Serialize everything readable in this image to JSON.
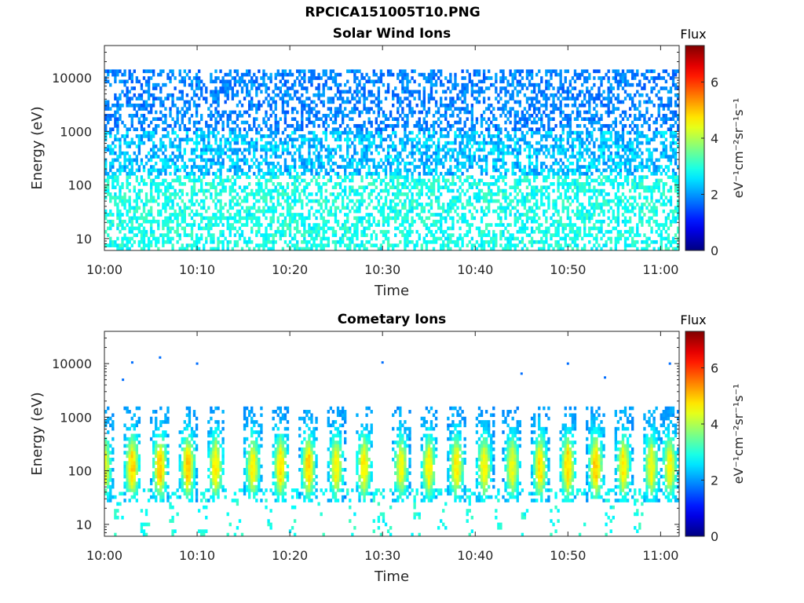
{
  "figure": {
    "title": "RPCICA151005T10.PNG"
  },
  "chart_data": [
    {
      "type": "heatmap",
      "title": "Solar Wind Ions",
      "xlabel": "Time",
      "ylabel": "Energy (eV)",
      "x_ticks": [
        "10:00",
        "10:10",
        "10:20",
        "10:30",
        "10:40",
        "10:50",
        "11:00"
      ],
      "x_range": [
        "10:00",
        "11:02"
      ],
      "y_scale": "log",
      "y_ticks": [
        10,
        100,
        1000,
        10000
      ],
      "y_tick_labels": [
        "10",
        "100",
        "1000",
        "10000"
      ],
      "y_range": [
        6,
        40000
      ],
      "colorbar": {
        "title": "Flux",
        "label": "eV⁻¹cm⁻²sr⁻¹s⁻¹",
        "ticks": [
          0,
          2,
          4,
          6
        ],
        "range": [
          0,
          7.3
        ],
        "colormap": "jet"
      },
      "description_of_data": [
        {
          "energy_range": [
            1000,
            15000
          ],
          "flux_range": [
            1.5,
            2.2
          ]
        },
        {
          "energy_range": [
            150,
            1000
          ],
          "flux_range": [
            1.8,
            2.8
          ]
        },
        {
          "energy_range": [
            6,
            150
          ],
          "flux_range": [
            2.5,
            3.3
          ]
        }
      ]
    },
    {
      "type": "heatmap",
      "title": "Cometary Ions",
      "xlabel": "Time",
      "ylabel": "Energy (eV)",
      "x_ticks": [
        "10:00",
        "10:10",
        "10:20",
        "10:30",
        "10:40",
        "10:50",
        "11:00"
      ],
      "x_range": [
        "10:00",
        "11:02"
      ],
      "y_scale": "log",
      "y_ticks": [
        10,
        100,
        1000,
        10000
      ],
      "y_tick_labels": [
        "10",
        "100",
        "1000",
        "10000"
      ],
      "y_range": [
        6,
        40000
      ],
      "colorbar": {
        "title": "Flux",
        "label": "eV⁻¹cm⁻²sr⁻¹s⁻¹",
        "ticks": [
          0,
          2,
          4,
          6
        ],
        "range": [
          0,
          7.3
        ],
        "colormap": "jet"
      },
      "bursts": [
        {
          "time": "10:00",
          "peak_flux": 4.4
        },
        {
          "time": "10:03",
          "peak_flux": 4.8
        },
        {
          "time": "10:06",
          "peak_flux": 4.9
        },
        {
          "time": "10:09",
          "peak_flux": 4.9
        },
        {
          "time": "10:12",
          "peak_flux": 4.6
        },
        {
          "time": "10:16",
          "peak_flux": 4.5
        },
        {
          "time": "10:19",
          "peak_flux": 4.7
        },
        {
          "time": "10:22",
          "peak_flux": 4.8
        },
        {
          "time": "10:25",
          "peak_flux": 4.5
        },
        {
          "time": "10:28",
          "peak_flux": 4.6
        },
        {
          "time": "10:32",
          "peak_flux": 4.4
        },
        {
          "time": "10:35",
          "peak_flux": 4.5
        },
        {
          "time": "10:38",
          "peak_flux": 4.6
        },
        {
          "time": "10:41",
          "peak_flux": 4.5
        },
        {
          "time": "10:44",
          "peak_flux": 4.4
        },
        {
          "time": "10:47",
          "peak_flux": 4.7
        },
        {
          "time": "10:50",
          "peak_flux": 4.8
        },
        {
          "time": "10:53",
          "peak_flux": 4.9
        },
        {
          "time": "10:56",
          "peak_flux": 4.6
        },
        {
          "time": "10:59",
          "peak_flux": 4.4
        },
        {
          "time": "11:01",
          "peak_flux": 4.5
        }
      ],
      "sparse_high_energy_points": [
        {
          "time": "10:03",
          "energy": 10500
        },
        {
          "time": "10:06",
          "energy": 13000
        },
        {
          "time": "10:10",
          "energy": 10000
        },
        {
          "time": "10:30",
          "energy": 10500
        },
        {
          "time": "10:50",
          "energy": 10000
        },
        {
          "time": "11:01",
          "energy": 10000
        },
        {
          "time": "10:02",
          "energy": 5000
        },
        {
          "time": "10:45",
          "energy": 6500
        },
        {
          "time": "10:54",
          "energy": 5500
        }
      ]
    }
  ]
}
